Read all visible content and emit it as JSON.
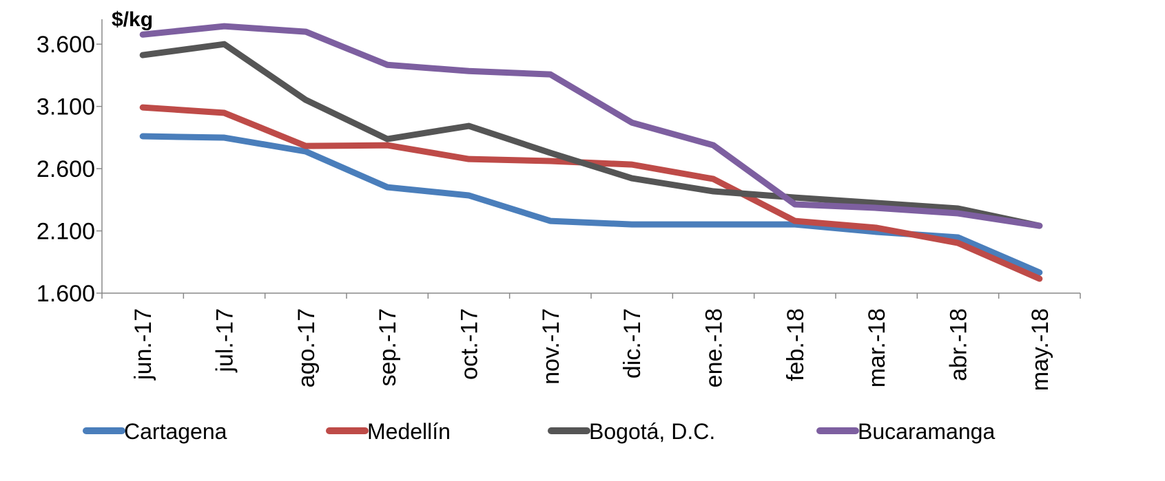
{
  "chart_data": {
    "type": "line",
    "y_unit_label": "$/kg",
    "categories": [
      "jun.-17",
      "jul.-17",
      "ago.-17",
      "sep.-17",
      "oct.-17",
      "nov.-17",
      "dic.-17",
      "ene.-18",
      "feb.-18",
      "mar.-18",
      "abr.-18",
      "may.-18"
    ],
    "series": [
      {
        "name": "Cartagena",
        "color": "#4a7ebb",
        "values": [
          2860,
          2849,
          2738,
          2451,
          2385,
          2180,
          2152,
          2152,
          2152,
          2092,
          2048,
          1766
        ]
      },
      {
        "name": "Medellín",
        "color": "#be4b48",
        "values": [
          3092,
          3048,
          2782,
          2788,
          2677,
          2661,
          2633,
          2517,
          2180,
          2125,
          2003,
          1716
        ]
      },
      {
        "name": "Bogotá, D.C.",
        "color": "#555555",
        "values": [
          3512,
          3600,
          3152,
          2838,
          2943,
          2727,
          2523,
          2418,
          2368,
          2324,
          2280,
          2141
        ]
      },
      {
        "name": "Bucaramanga",
        "color": "#7d5fa0",
        "values": [
          3677,
          3744,
          3700,
          3434,
          3384,
          3357,
          2970,
          2788,
          2313,
          2285,
          2241,
          2141
        ]
      }
    ],
    "ylim": [
      1600,
      3800
    ],
    "yticks": [
      {
        "value": 1600,
        "label": "1.600"
      },
      {
        "value": 2100,
        "label": "2.100"
      },
      {
        "value": 2600,
        "label": "2.600"
      },
      {
        "value": 3100,
        "label": "3.100"
      },
      {
        "value": 3600,
        "label": "3.600"
      }
    ],
    "legend": "bottom"
  }
}
